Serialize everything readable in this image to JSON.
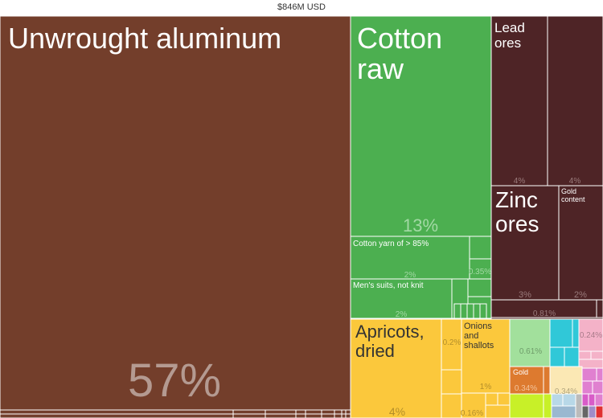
{
  "header": {
    "total_label": "$846M USD"
  },
  "chart_data": {
    "type": "treemap",
    "total": "$846M USD",
    "labelled_tiles": [
      {
        "id": "unwrought-aluminum",
        "name": "Unwrought aluminum",
        "share": "57%",
        "value_pct": 57,
        "color": "#733e2b"
      },
      {
        "id": "cotton-raw",
        "name": "Cotton raw",
        "share": "13%",
        "value_pct": 13,
        "color": "#4caf50"
      },
      {
        "id": "lead-ores",
        "name": "Lead ores",
        "share": "4%",
        "value_pct": 4,
        "color": "#4e2426"
      },
      {
        "id": "lead-ores-2",
        "name": "",
        "share": "4%",
        "value_pct": 4,
        "color": "#4e2426"
      },
      {
        "id": "zinc-ores",
        "name": "Zinc ores",
        "share": "3%",
        "value_pct": 3,
        "color": "#4e2426"
      },
      {
        "id": "gold-content",
        "name": "Gold content",
        "share": "2%",
        "value_pct": 2,
        "color": "#4e2426"
      },
      {
        "id": "minerals-small",
        "name": "",
        "share": "0.81%",
        "value_pct": 0.81,
        "color": "#4e2426"
      },
      {
        "id": "cotton-yarn",
        "name": "Cotton yarn of > 85%",
        "share": "2%",
        "value_pct": 2,
        "color": "#4caf50"
      },
      {
        "id": "mens-suits",
        "name": "Men's suits, not knit",
        "share": "2%",
        "value_pct": 2,
        "color": "#4caf50"
      },
      {
        "id": "textile-small",
        "name": "",
        "share": "0.35%",
        "value_pct": 0.35,
        "color": "#4caf50"
      },
      {
        "id": "apricots-dried",
        "name": "Apricots, dried",
        "share": "4%",
        "value_pct": 4,
        "color": "#fbc83c"
      },
      {
        "id": "onions-shallots",
        "name": "Onions and shallots",
        "share": "1%",
        "value_pct": 1,
        "color": "#fbc83c"
      },
      {
        "id": "veg-small-1",
        "name": "",
        "share": "0.2%",
        "value_pct": 0.2,
        "color": "#fbc83c"
      },
      {
        "id": "veg-small-2",
        "name": "",
        "share": "0.16%",
        "value_pct": 0.16,
        "color": "#fbc83c"
      },
      {
        "id": "light-green",
        "name": "",
        "share": "0.61%",
        "value_pct": 0.61,
        "color": "#a2e09c"
      },
      {
        "id": "gold",
        "name": "Gold",
        "share": "0.34%",
        "value_pct": 0.34,
        "color": "#dd7a2f"
      },
      {
        "id": "cream",
        "name": "",
        "share": "0.34%",
        "value_pct": 0.34,
        "color": "#fbe8b4"
      },
      {
        "id": "pink",
        "name": "",
        "share": "0.24%",
        "value_pct": 0.24,
        "color": "#f4b2c8"
      }
    ],
    "legend": "none",
    "grid": false
  }
}
